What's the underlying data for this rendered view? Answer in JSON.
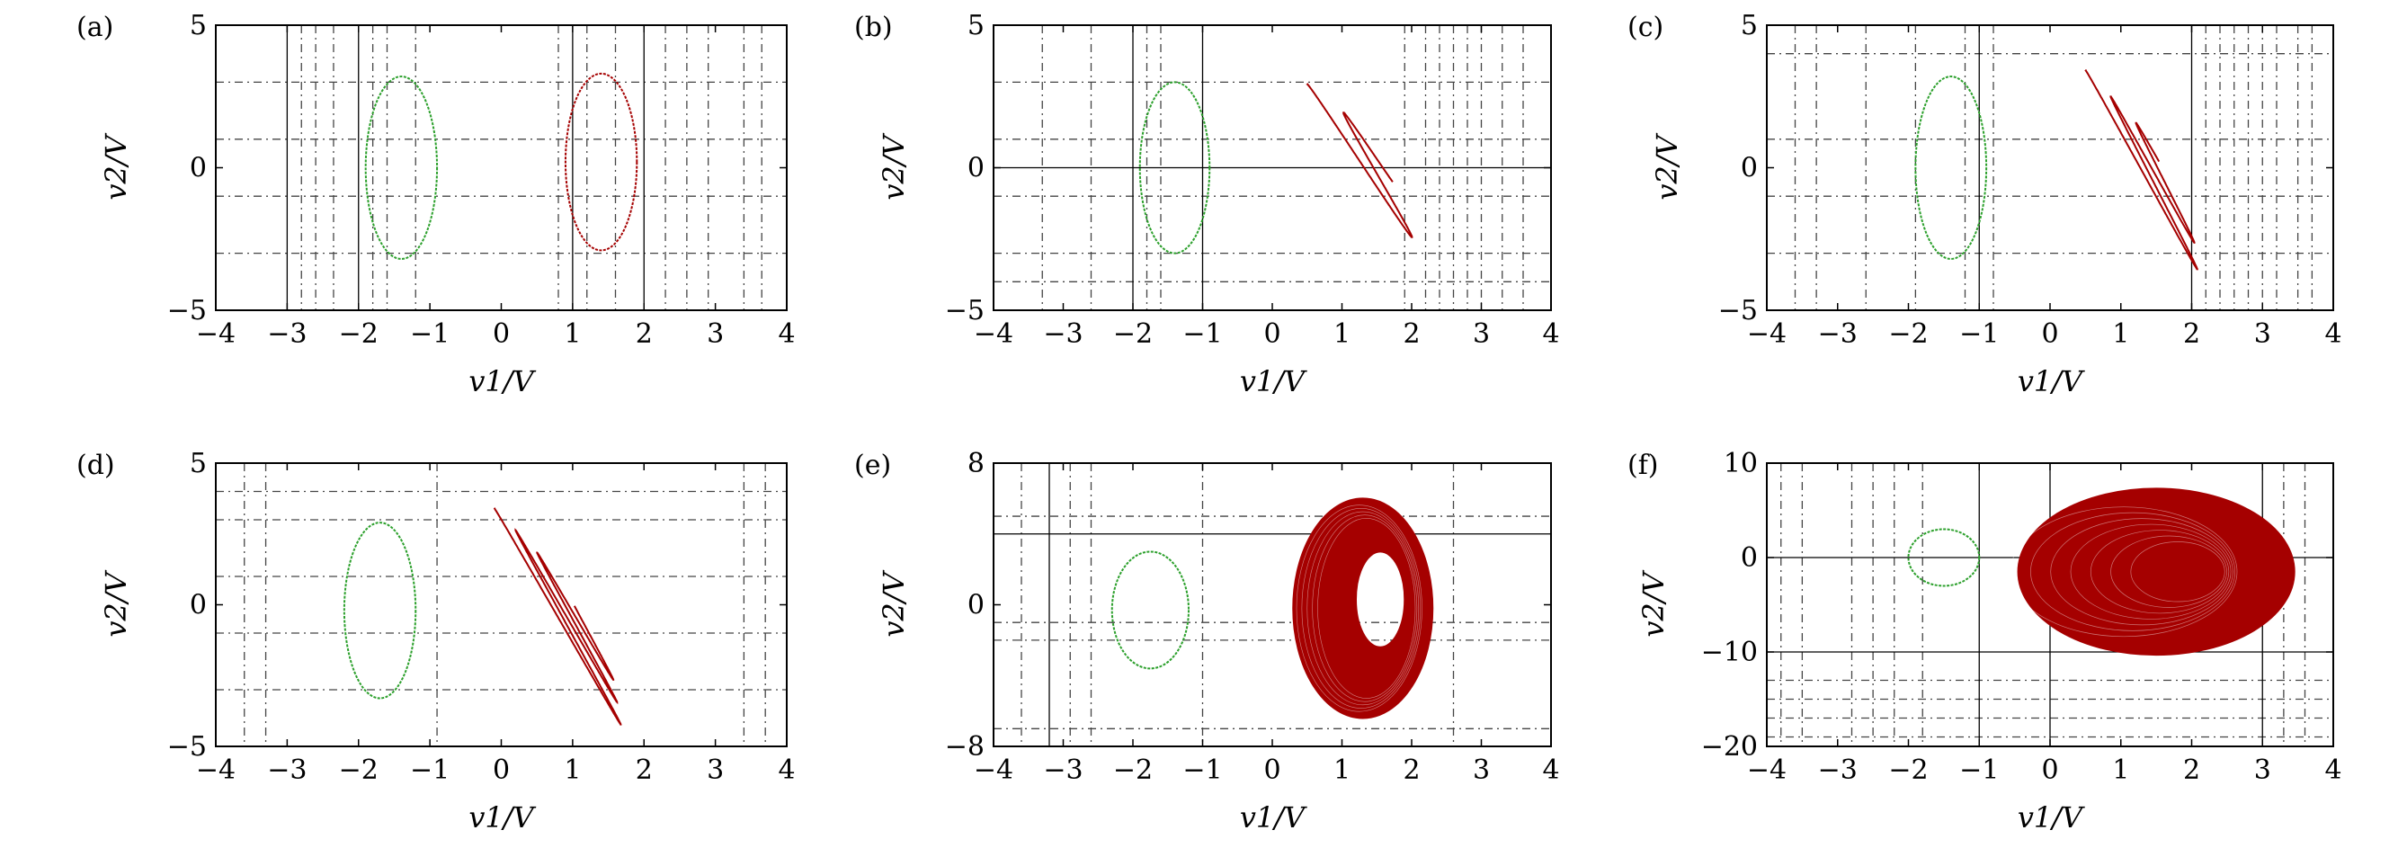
{
  "colors": {
    "green": "#2ca02c",
    "red": "#a50000",
    "axis": "#000000",
    "grid": "#444444"
  },
  "chart_data": [
    {
      "type": "scatter",
      "panel": "(a)",
      "xlabel": "v1/V",
      "ylabel": "v2/V",
      "xlim": [
        -4,
        4
      ],
      "ylim": [
        -5,
        5
      ],
      "xticks": [
        "−4",
        "−3",
        "−2",
        "−1",
        "0",
        "1",
        "2",
        "3",
        "4"
      ],
      "yticks": [
        "−5",
        "0",
        "5"
      ],
      "series": [
        {
          "color": "green",
          "kind": "ellipse",
          "cx": -1.4,
          "cy": 0.0,
          "rx": 0.5,
          "ry": 3.2
        },
        {
          "color": "red",
          "kind": "ellipse",
          "cx": 1.4,
          "cy": 0.2,
          "rx": 0.5,
          "ry": 3.1
        }
      ],
      "solid_v": [
        -3,
        -2,
        1,
        2
      ],
      "dashed_v": [
        -2.8,
        -2.6,
        -2.35,
        -1.8,
        -1.6,
        -1.2,
        0.8,
        1.2,
        1.6,
        2.3,
        2.6,
        2.9,
        3.4,
        3.65
      ],
      "solid_h": [],
      "dashed_h": [
        3,
        1,
        -1,
        -3
      ]
    },
    {
      "type": "scatter",
      "panel": "(b)",
      "xlabel": "v1/V",
      "ylabel": "v2/V",
      "xlim": [
        -4,
        4
      ],
      "ylim": [
        -5,
        5
      ],
      "xticks": [
        "−4",
        "−3",
        "−2",
        "−1",
        "0",
        "1",
        "2",
        "3",
        "4"
      ],
      "yticks": [
        "−5",
        "0",
        "5"
      ],
      "series": [
        {
          "color": "green",
          "kind": "ellipse",
          "cx": -1.4,
          "cy": 0.0,
          "rx": 0.5,
          "ry": 3.0
        },
        {
          "color": "red",
          "kind": "spiral",
          "cx": 1.25,
          "cy": 0.0,
          "rx": 0.75,
          "ry": 3.0,
          "turns": 1.3,
          "shrink": 0.55,
          "shift": 0.35
        }
      ],
      "solid_v": [
        -2,
        -1
      ],
      "dashed_v": [
        -3.3,
        -2.6,
        -1.8,
        -1.6,
        1.9,
        2.2,
        2.4,
        2.6,
        2.8,
        3.0,
        3.3,
        3.6
      ],
      "solid_h": [
        0
      ],
      "dashed_h": [
        3,
        1,
        -1,
        -3,
        -4
      ]
    },
    {
      "type": "scatter",
      "panel": "(c)",
      "xlabel": "v1/V",
      "ylabel": "v2/V",
      "xlim": [
        -4,
        4
      ],
      "ylim": [
        -5,
        5
      ],
      "xticks": [
        "−4",
        "−3",
        "−2",
        "−1",
        "0",
        "1",
        "2",
        "3",
        "4"
      ],
      "yticks": [
        "−5",
        "0",
        "5"
      ],
      "series": [
        {
          "color": "green",
          "kind": "ellipse",
          "cx": -1.4,
          "cy": 0.0,
          "rx": 0.5,
          "ry": 3.2
        },
        {
          "color": "red",
          "kind": "spiral",
          "cx": 1.3,
          "cy": -0.3,
          "rx": 0.8,
          "ry": 3.8,
          "turns": 2.2,
          "shrink": 0.45,
          "shift": 0.35
        }
      ],
      "solid_v": [
        -1,
        2
      ],
      "dashed_v": [
        -3.6,
        -3.3,
        -2.6,
        -1.9,
        -1.2,
        -0.8,
        2.2,
        2.4,
        2.6,
        2.8,
        3.0,
        3.2,
        3.5,
        3.7
      ],
      "solid_h": [],
      "dashed_h": [
        4,
        1,
        -1,
        -3
      ]
    },
    {
      "type": "scatter",
      "panel": "(d)",
      "xlabel": "v1/V",
      "ylabel": "v2/V",
      "xlim": [
        -4,
        4
      ],
      "ylim": [
        -5,
        5
      ],
      "xticks": [
        "−4",
        "−3",
        "−2",
        "−1",
        "0",
        "1",
        "2",
        "3",
        "4"
      ],
      "yticks": [
        "−5",
        "0",
        "5"
      ],
      "series": [
        {
          "color": "green",
          "kind": "ellipse",
          "cx": -1.7,
          "cy": -0.2,
          "rx": 0.5,
          "ry": 3.1
        },
        {
          "color": "red",
          "kind": "spiral",
          "cx": 0.8,
          "cy": -0.6,
          "rx": 0.9,
          "ry": 4.1,
          "turns": 2.8,
          "shrink": 0.45,
          "shift": 0.35
        }
      ],
      "solid_v": [],
      "dashed_v": [
        -3.6,
        -3.3,
        -0.9,
        3.4,
        3.7
      ],
      "solid_h": [],
      "dashed_h": [
        4,
        3,
        1,
        -1,
        -3
      ]
    },
    {
      "type": "scatter",
      "panel": "(e)",
      "xlabel": "v1/V",
      "ylabel": "v2/V",
      "xlim": [
        -4,
        4
      ],
      "ylim": [
        -8,
        8
      ],
      "xticks": [
        "−4",
        "−3",
        "−2",
        "−1",
        "0",
        "1",
        "2",
        "3",
        "4"
      ],
      "yticks": [
        "−8",
        "0",
        "8"
      ],
      "series": [
        {
          "color": "green",
          "kind": "ellipse",
          "cx": -1.75,
          "cy": -0.3,
          "rx": 0.55,
          "ry": 3.3
        },
        {
          "color": "red",
          "kind": "torus",
          "cx": 1.3,
          "cy": -0.2,
          "rx": 1.0,
          "ry": 6.2,
          "hcx": 1.55,
          "hcy": 0.3,
          "hrx": 0.35,
          "hry": 2.7
        }
      ],
      "solid_v": [
        -3.2
      ],
      "dashed_v": [
        -3.6,
        -2.9,
        -2.6,
        -1.0,
        2.6
      ],
      "solid_h": [
        4
      ],
      "dashed_h": [
        5,
        -1,
        -2,
        -7
      ]
    },
    {
      "type": "scatter",
      "panel": "(f)",
      "xlabel": "v1/V",
      "ylabel": "v2/V",
      "xlim": [
        -4,
        4
      ],
      "ylim": [
        -20,
        10
      ],
      "xticks": [
        "−4",
        "−3",
        "−2",
        "−1",
        "0",
        "1",
        "2",
        "3",
        "4"
      ],
      "yticks": [
        "−20",
        "−10",
        "0",
        "10"
      ],
      "series": [
        {
          "color": "green",
          "kind": "ellipse",
          "cx": -1.5,
          "cy": 0.0,
          "rx": 0.5,
          "ry": 3.0
        },
        {
          "color": "red",
          "kind": "blob",
          "cx": 1.5,
          "cy": -1.5,
          "rx": 1.95,
          "ry": 8.8
        }
      ],
      "solid_v": [
        -1,
        0,
        3
      ],
      "dashed_v": [
        -3.8,
        -3.5,
        -2.8,
        -2.5,
        -2.2,
        -1.8,
        3.3,
        3.6
      ],
      "solid_h": [
        0,
        -10
      ],
      "dashed_h": [
        -13,
        -15,
        -17,
        -19
      ]
    }
  ]
}
